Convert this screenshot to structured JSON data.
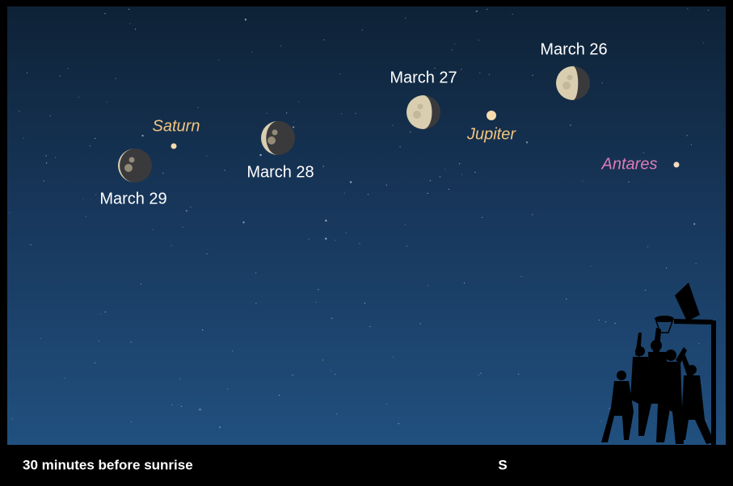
{
  "sky": {
    "moons": [
      {
        "label": "March 29"
      },
      {
        "label": "March 28"
      },
      {
        "label": "March 27"
      },
      {
        "label": "March 26"
      }
    ],
    "objects": [
      {
        "label": "Saturn"
      },
      {
        "label": "Jupiter"
      },
      {
        "label": "Antares"
      }
    ]
  },
  "footer": {
    "caption": "30 minutes before sunrise",
    "direction": "S"
  }
}
